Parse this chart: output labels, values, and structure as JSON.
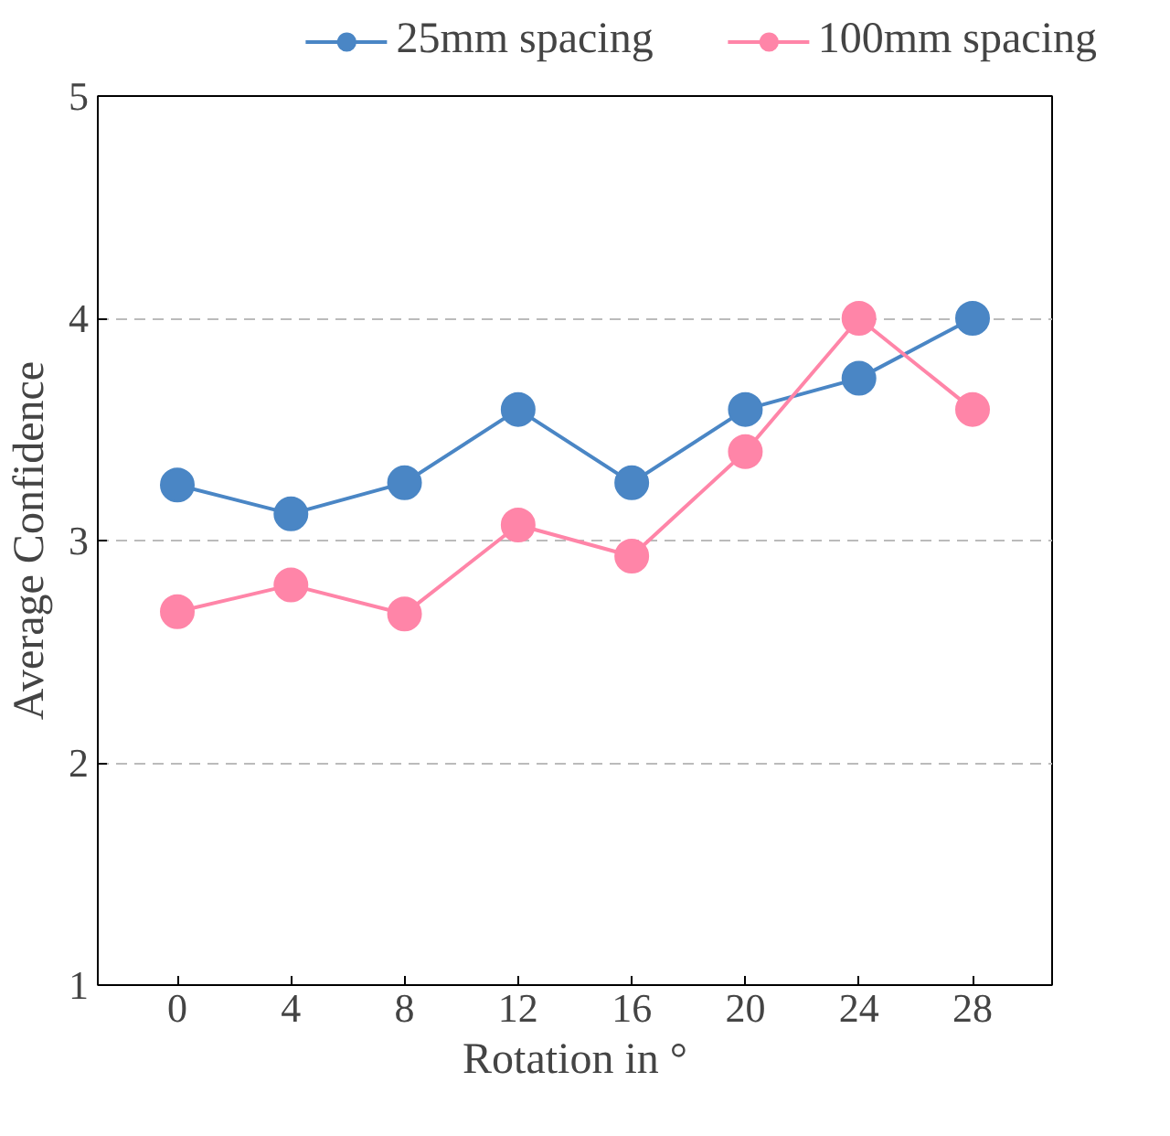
{
  "chart_data": {
    "type": "line",
    "xlabel": "Rotation in °",
    "ylabel": "Average Confidence",
    "x": [
      0,
      4,
      8,
      12,
      16,
      20,
      24,
      28
    ],
    "series": [
      {
        "name": "25mm spacing",
        "color": "#4a86c5",
        "values": [
          3.25,
          3.12,
          3.26,
          3.59,
          3.26,
          3.59,
          3.73,
          4.0
        ]
      },
      {
        "name": "100mm spacing",
        "color": "#ff85a8",
        "values": [
          2.68,
          2.8,
          2.67,
          3.07,
          2.93,
          3.4,
          4.0,
          3.59
        ]
      }
    ],
    "xlim": [
      -2.8,
      30.8
    ],
    "ylim": [
      1,
      5
    ],
    "xticks": [
      0,
      4,
      8,
      12,
      16,
      20,
      24,
      28
    ],
    "yticks": [
      1,
      2,
      3,
      4,
      5
    ],
    "grid": "y",
    "legend": "top",
    "marker": "circle",
    "line_style": "solid"
  }
}
